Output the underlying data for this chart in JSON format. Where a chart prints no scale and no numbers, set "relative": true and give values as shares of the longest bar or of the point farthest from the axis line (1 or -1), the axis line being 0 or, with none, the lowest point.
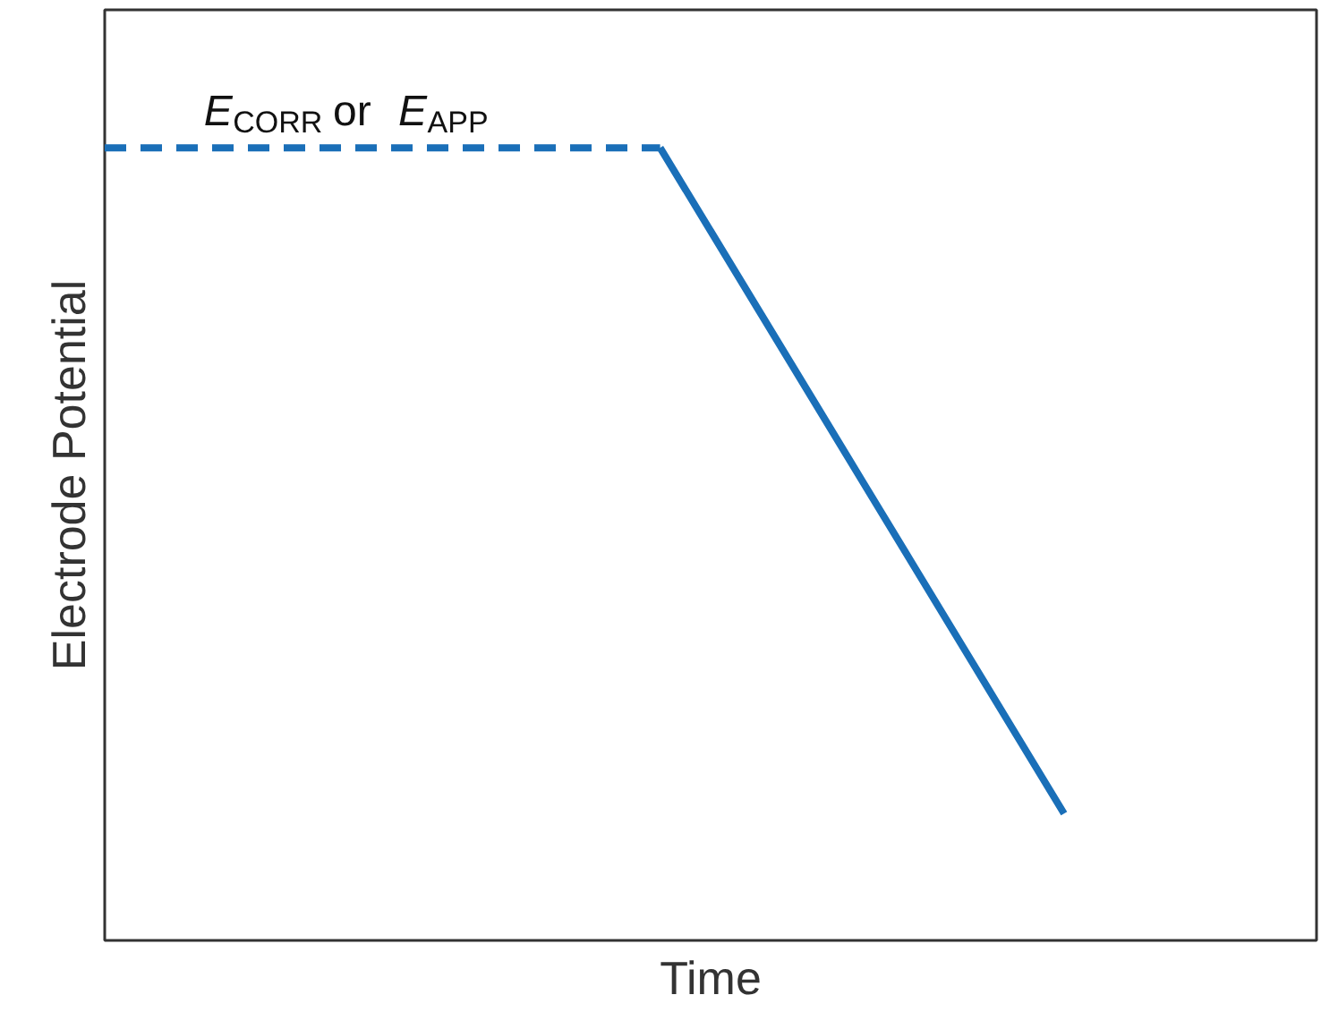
{
  "chart_data": {
    "type": "line",
    "relative": true,
    "xlabel": "Time",
    "ylabel": "Electrode Potential",
    "categories": [
      null,
      null,
      null,
      null,
      null,
      null,
      null,
      null,
      null,
      null,
      null,
      null,
      null,
      null,
      null,
      null,
      null,
      null,
      null,
      null,
      null,
      null,
      null,
      null,
      null
    ],
    "series": [
      {
        "color": "#1a6fb8",
        "line_style": "dashed",
        "values": [
          1,
          1,
          1,
          1,
          1,
          1,
          1,
          1,
          1,
          1,
          1,
          1,
          null,
          null,
          null,
          null,
          null,
          null,
          null,
          null,
          null,
          null,
          null,
          null,
          null
        ]
      },
      {
        "color": "#1a6fb8",
        "line_style": "solid",
        "values": [
          null,
          null,
          null,
          null,
          null,
          null,
          null,
          null,
          null,
          null,
          null,
          1,
          0.895,
          0.79,
          0.685,
          0.58,
          0.475,
          0.37,
          0.265,
          0.16,
          null,
          null,
          null,
          null,
          null
        ]
      }
    ],
    "annotations": [
      "E$_{CORR}$ or E$_{APP}$"
    ]
  }
}
